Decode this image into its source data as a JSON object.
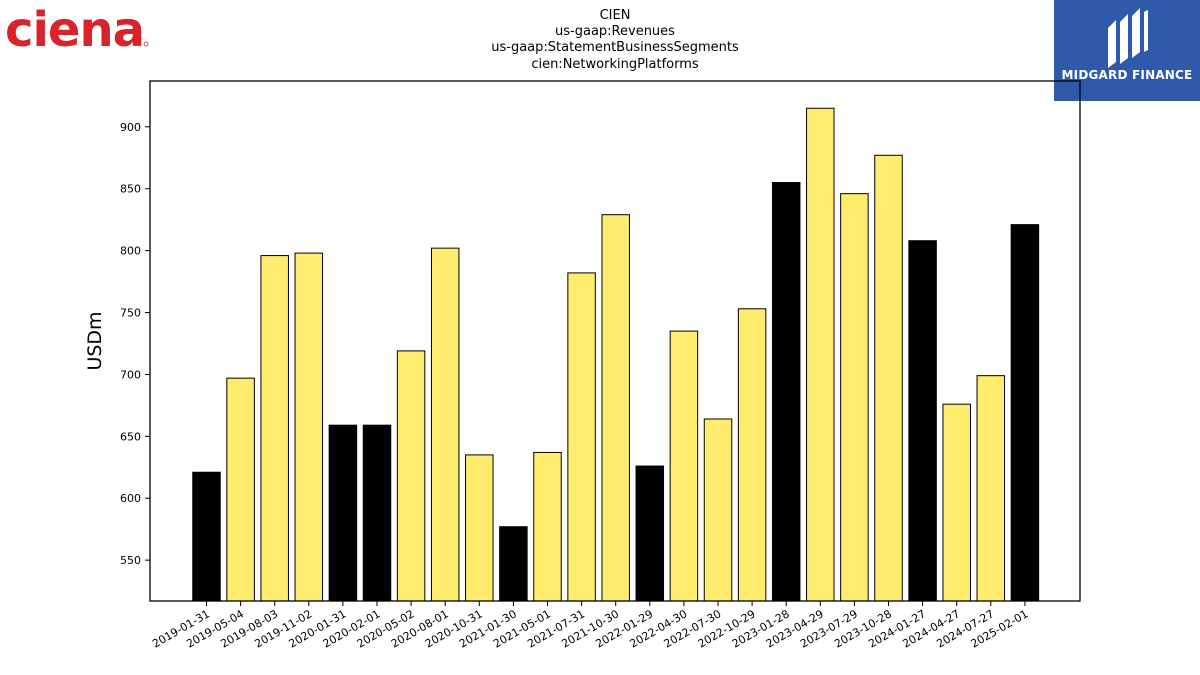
{
  "header": {
    "title_lines": [
      "CIEN",
      "us-gaap:Revenues",
      "us-gaap:StatementBusinessSegments",
      "cien:NetworkingPlatforms"
    ]
  },
  "logos": {
    "left": {
      "text": "ciena",
      "color": "#d8232a",
      "icon": "ciena-logo"
    },
    "right": {
      "text": "MIDGARD FINANCE",
      "background": "#2f5aa9",
      "icon": "midgard-finance-logo"
    }
  },
  "chart_data": {
    "type": "bar",
    "title": "",
    "xlabel": "",
    "ylabel": "USDm",
    "ylim": [
      517,
      937
    ],
    "yticks": [
      550,
      600,
      650,
      700,
      750,
      800,
      850,
      900
    ],
    "grid": false,
    "categories": [
      "2019-01-31",
      "2019-05-04",
      "2019-08-03",
      "2019-11-02",
      "2020-01-31",
      "2020-02-01",
      "2020-05-02",
      "2020-08-01",
      "2020-10-31",
      "2021-01-30",
      "2021-05-01",
      "2021-07-31",
      "2021-10-30",
      "2022-01-29",
      "2022-04-30",
      "2022-07-30",
      "2022-10-29",
      "2023-01-28",
      "2023-04-29",
      "2023-07-29",
      "2023-10-28",
      "2024-01-27",
      "2024-04-27",
      "2024-07-27",
      "2025-02-01"
    ],
    "values": [
      621,
      697,
      796,
      798,
      659,
      659,
      719,
      802,
      635,
      577,
      637,
      782,
      829,
      626,
      735,
      664,
      753,
      855,
      915,
      846,
      877,
      808,
      676,
      699,
      821
    ],
    "colors": [
      "#000000",
      "#ffec6e",
      "#ffec6e",
      "#ffec6e",
      "#000000",
      "#000000",
      "#ffec6e",
      "#ffec6e",
      "#ffec6e",
      "#000000",
      "#ffec6e",
      "#ffec6e",
      "#ffec6e",
      "#000000",
      "#ffec6e",
      "#ffec6e",
      "#ffec6e",
      "#000000",
      "#ffec6e",
      "#ffec6e",
      "#ffec6e",
      "#000000",
      "#ffec6e",
      "#ffec6e",
      "#000000"
    ]
  }
}
